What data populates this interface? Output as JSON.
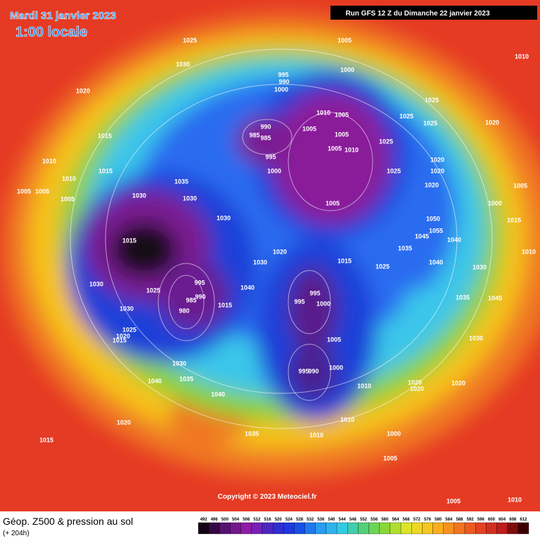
{
  "header": {
    "date": "Mardi 31 janvier 2023",
    "time": "1:00 locale",
    "run": "Run GFS 12 Z du Dimanche 22 janvier 2023"
  },
  "copyright": "Copyright © 2023 Meteociel.fr",
  "legend": {
    "title": "Géop. Z500 & pression au sol",
    "subtitle": "(+ 204h)",
    "scale": [
      492,
      496,
      500,
      504,
      508,
      512,
      516,
      520,
      524,
      528,
      532,
      536,
      540,
      544,
      548,
      552,
      556,
      560,
      564,
      568,
      572,
      576,
      580,
      584,
      588,
      592,
      596,
      600,
      604,
      608,
      612
    ]
  },
  "map": {
    "pressure_labels": [
      1025,
      1030,
      1020,
      1005,
      1000,
      995,
      990,
      1000,
      1010,
      1005,
      1025,
      1025,
      1025,
      1020,
      990,
      985,
      985,
      1005,
      1005,
      1025,
      995,
      1005,
      1010,
      1015,
      1010,
      1015,
      1010,
      1000,
      1025,
      1020,
      1020,
      1010,
      1005,
      1005,
      1005,
      1035,
      1030,
      1030,
      1020,
      1005,
      1000,
      1005,
      1030,
      1015,
      1050,
      1055,
      1045,
      1040,
      1035,
      1020,
      1030,
      1015,
      1025,
      1040,
      1030,
      995,
      1025,
      985,
      1030,
      990,
      1015,
      995,
      995,
      1000,
      1040,
      1030,
      980,
      1035,
      1045,
      1025,
      1020,
      1015,
      1005,
      1030,
      995,
      990,
      1000,
      1030,
      1035,
      1040,
      1010,
      1020,
      1020,
      1020,
      1040,
      1020,
      1010,
      1015,
      1035,
      1010,
      1000,
      1005,
      1005,
      1010,
      1015,
      1010
    ]
  }
}
